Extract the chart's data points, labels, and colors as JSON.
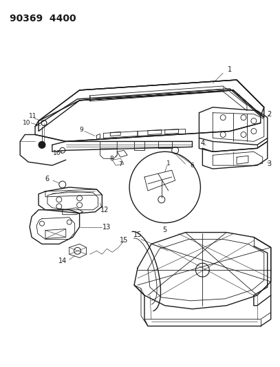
{
  "title": "90369 4400",
  "bg": "#ffffff",
  "fg": "#1a1a1a",
  "lw_main": 1.0,
  "lw_detail": 0.6,
  "lw_thin": 0.4,
  "fig_w": 4.07,
  "fig_h": 5.33,
  "dpi": 100
}
